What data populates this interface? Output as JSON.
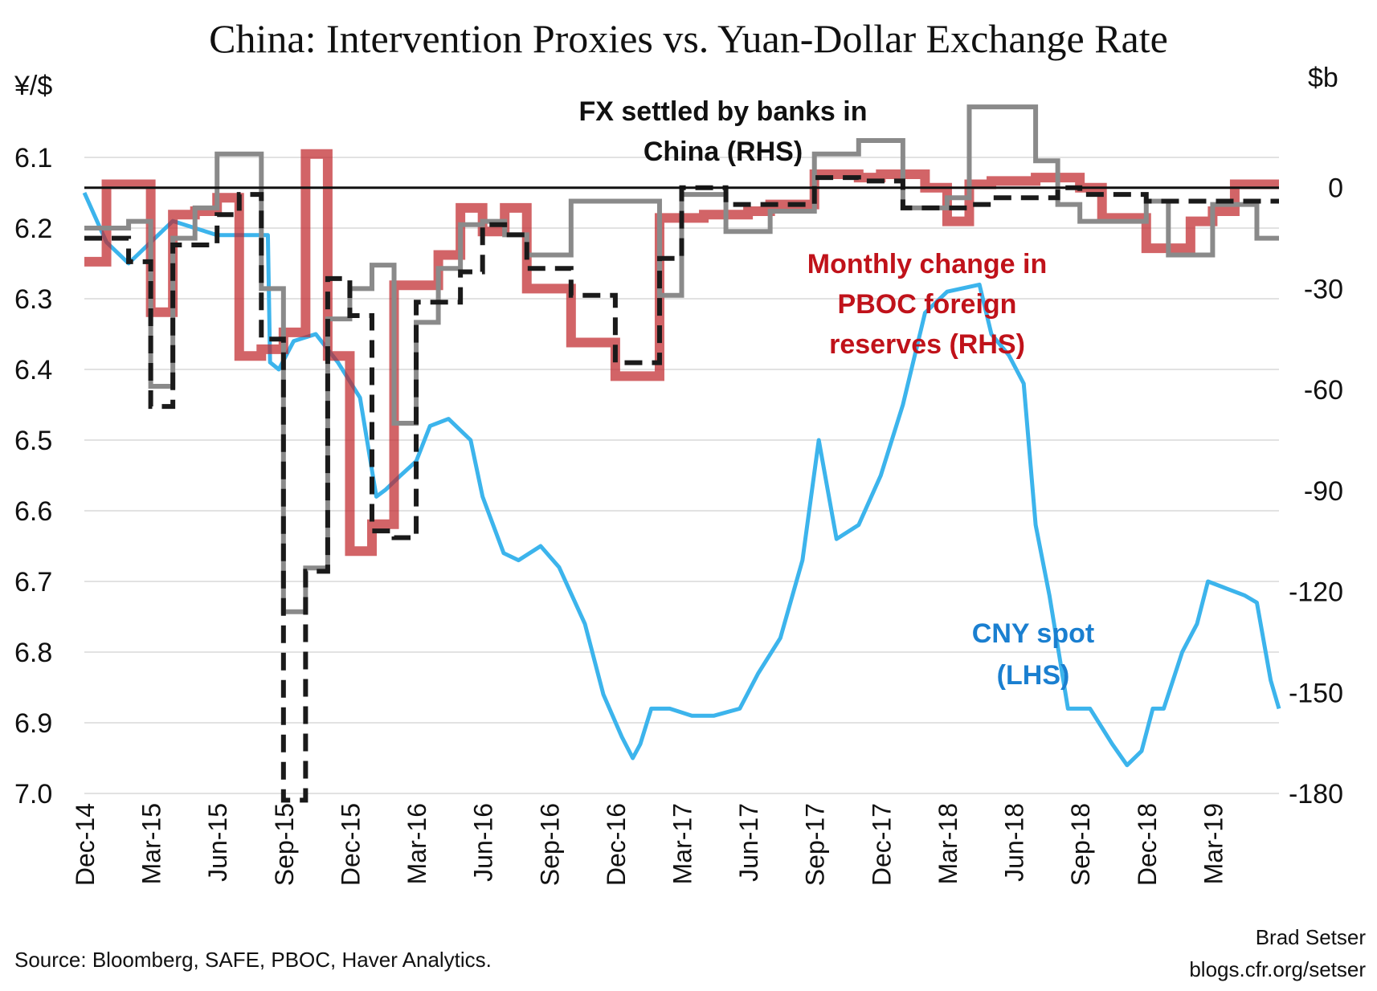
{
  "chart_data": {
    "type": "line",
    "title": "China: Intervention Proxies vs. Yuan-Dollar Exchange Rate",
    "y_left": {
      "unit": "¥/$",
      "ticks": [
        "6.1",
        "6.2",
        "6.3",
        "6.4",
        "6.5",
        "6.6",
        "6.7",
        "6.8",
        "6.9",
        "7.0"
      ],
      "range": [
        6.0,
        7.0
      ],
      "inverted": true
    },
    "y_right": {
      "unit": "$b",
      "ticks": [
        "0",
        "-30",
        "-60",
        "-90",
        "-120",
        "-150",
        "-180"
      ],
      "range": [
        -180,
        30
      ]
    },
    "x_ticks": [
      "Dec-14",
      "Mar-15",
      "Jun-15",
      "Sep-15",
      "Dec-15",
      "Mar-16",
      "Jun-16",
      "Sep-16",
      "Dec-16",
      "Mar-17",
      "Jun-17",
      "Sep-17",
      "Dec-17",
      "Mar-18",
      "Jun-18",
      "Sep-18",
      "Dec-18",
      "Mar-19"
    ],
    "x_range": [
      "2014-12",
      "2019-06"
    ],
    "grid": "horizontal",
    "zero_line_right": 0,
    "annotations": {
      "fx_settled": [
        "FX settled by banks in",
        "China (RHS)"
      ],
      "reserves": [
        "Monthly change in",
        "PBOC foreign",
        "reserves (RHS)"
      ],
      "cny": [
        "CNY spot",
        "(LHS)"
      ]
    },
    "colors": {
      "cny": "#3cb4ec",
      "reserves": "#c0282c",
      "fx_dashed": "#1a1a1a",
      "fx_gray": "#8a8a8a",
      "ann_fx": "#111111",
      "ann_reserves": "#c0121a",
      "ann_cny": "#1a7fd0"
    },
    "months": [
      "2014-12",
      "2015-01",
      "2015-02",
      "2015-03",
      "2015-04",
      "2015-05",
      "2015-06",
      "2015-07",
      "2015-08",
      "2015-09",
      "2015-10",
      "2015-11",
      "2015-12",
      "2016-01",
      "2016-02",
      "2016-03",
      "2016-04",
      "2016-05",
      "2016-06",
      "2016-07",
      "2016-08",
      "2016-09",
      "2016-10",
      "2016-11",
      "2016-12",
      "2017-01",
      "2017-02",
      "2017-03",
      "2017-04",
      "2017-05",
      "2017-06",
      "2017-07",
      "2017-08",
      "2017-09",
      "2017-10",
      "2017-11",
      "2017-12",
      "2018-01",
      "2018-02",
      "2018-03",
      "2018-04",
      "2018-05",
      "2018-06",
      "2018-07",
      "2018-08",
      "2018-09",
      "2018-10",
      "2018-11",
      "2018-12",
      "2019-01",
      "2019-02",
      "2019-03",
      "2019-04",
      "2019-05"
    ],
    "series": [
      {
        "name": "Monthly change in PBOC foreign reserves (RHS)",
        "axis": "right",
        "values": [
          -22,
          1,
          1,
          -37,
          -8,
          -7,
          -3,
          -50,
          -48,
          -43,
          10,
          -50,
          -108,
          -100,
          -29,
          -29,
          -20,
          -6,
          -13,
          -6,
          -30,
          -30,
          -46,
          -46,
          -56,
          -56,
          -9,
          -9,
          -8,
          -8,
          -7,
          -5,
          -5,
          4,
          4,
          3,
          4,
          4,
          0,
          -10,
          1,
          2,
          2,
          3,
          3,
          0,
          -9,
          -9,
          -18,
          -18,
          -10,
          -7,
          1,
          1
        ]
      },
      {
        "name": "FX settled by banks in China (gray)",
        "axis": "right",
        "values": [
          -12,
          -12,
          -10,
          -59,
          -15,
          -6,
          10,
          10,
          -30,
          -126,
          -113,
          -39,
          -30,
          -23,
          -70,
          -40,
          -24,
          -11,
          -10,
          -14,
          -20,
          -20,
          -4,
          -4,
          -4,
          -4,
          -32,
          -2,
          -2,
          -13,
          -13,
          -7,
          -7,
          10,
          10,
          14,
          14,
          -6,
          -6,
          -3,
          24,
          24,
          24,
          8,
          -5,
          -10,
          -10,
          -10,
          -4,
          -20,
          -20,
          -5,
          -5,
          -15
        ]
      },
      {
        "name": "FX settled by banks in China (dashed)",
        "axis": "right",
        "values": [
          -15,
          -15,
          -22,
          -65,
          -17,
          -17,
          -8,
          -2,
          -45,
          -182,
          -114,
          -27,
          -38,
          -102,
          -104,
          -34,
          -34,
          -25,
          -11,
          -14,
          -24,
          -24,
          -32,
          -32,
          -52,
          -52,
          -21,
          0,
          0,
          -5,
          -5,
          -5,
          -5,
          3,
          3,
          2,
          2,
          -6,
          -6,
          -6,
          -5,
          -3,
          -3,
          -3,
          0,
          -2,
          -2,
          -2,
          -4,
          -4,
          -4,
          -4,
          -4,
          -4
        ]
      }
    ],
    "cny_spot": {
      "name": "CNY spot (LHS)",
      "axis": "left",
      "dates": [
        "2014-12-01",
        "2015-01-01",
        "2015-02-01",
        "2015-03-01",
        "2015-04-01",
        "2015-05-01",
        "2015-06-01",
        "2015-07-01",
        "2015-08-10",
        "2015-08-13",
        "2015-08-25",
        "2015-09-15",
        "2015-10-15",
        "2015-11-15",
        "2015-12-15",
        "2016-01-07",
        "2016-01-20",
        "2016-02-10",
        "2016-03-01",
        "2016-03-20",
        "2016-04-15",
        "2016-05-15",
        "2016-06-01",
        "2016-06-30",
        "2016-07-20",
        "2016-08-20",
        "2016-09-15",
        "2016-10-20",
        "2016-11-15",
        "2016-12-10",
        "2016-12-25",
        "2017-01-05",
        "2017-01-20",
        "2017-02-15",
        "2017-03-15",
        "2017-04-15",
        "2017-05-20",
        "2017-06-15",
        "2017-07-15",
        "2017-08-15",
        "2017-09-07",
        "2017-10-01",
        "2017-11-01",
        "2017-12-01",
        "2018-01-01",
        "2018-02-01",
        "2018-03-01",
        "2018-04-15",
        "2018-05-01",
        "2018-05-25",
        "2018-06-15",
        "2018-07-01",
        "2018-07-20",
        "2018-08-15",
        "2018-09-15",
        "2018-10-15",
        "2018-11-05",
        "2018-11-25",
        "2018-12-10",
        "2018-12-25",
        "2019-01-20",
        "2019-02-10",
        "2019-02-25",
        "2019-03-20",
        "2019-04-15",
        "2019-05-01",
        "2019-05-20",
        "2019-06-01"
      ],
      "values": [
        6.15,
        6.22,
        6.25,
        6.22,
        6.19,
        6.2,
        6.21,
        6.21,
        6.21,
        6.39,
        6.4,
        6.36,
        6.35,
        6.39,
        6.44,
        6.58,
        6.57,
        6.55,
        6.53,
        6.48,
        6.47,
        6.5,
        6.58,
        6.66,
        6.67,
        6.65,
        6.68,
        6.76,
        6.86,
        6.92,
        6.95,
        6.93,
        6.88,
        6.88,
        6.89,
        6.89,
        6.88,
        6.83,
        6.78,
        6.67,
        6.5,
        6.64,
        6.62,
        6.55,
        6.45,
        6.32,
        6.29,
        6.28,
        6.35,
        6.38,
        6.42,
        6.62,
        6.72,
        6.88,
        6.88,
        6.93,
        6.96,
        6.94,
        6.88,
        6.88,
        6.8,
        6.76,
        6.7,
        6.71,
        6.72,
        6.73,
        6.84,
        6.88
      ]
    }
  },
  "footer": {
    "source": "Source: Bloomberg, SAFE, PBOC, Haver Analytics.",
    "author": "Brad Setser",
    "site": "blogs.cfr.org/setser"
  }
}
